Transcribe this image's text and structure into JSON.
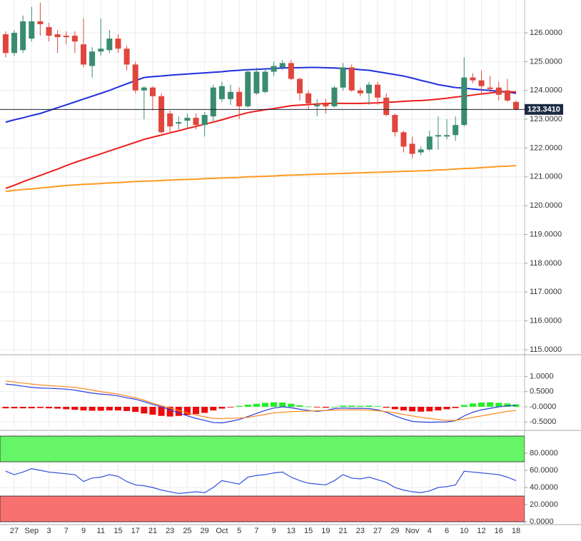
{
  "chart_data": [
    {
      "type": "candlestick",
      "up_color": "#3a8c70",
      "down_color": "#e0463c",
      "open": [
        125.95,
        125.3,
        125.4,
        125.8,
        126.4,
        126.2,
        125.95,
        125.9,
        125.9,
        125.6,
        124.85,
        125.35,
        125.4,
        125.8,
        125.45,
        124.9,
        124.0,
        124.1,
        123.8,
        123.2,
        122.85,
        122.95,
        123.05,
        122.8,
        123.1,
        123.7,
        123.7,
        123.95,
        123.45,
        123.9,
        123.95,
        124.65,
        124.8,
        124.95,
        124.4,
        123.9,
        123.45,
        123.55,
        123.45,
        124.1,
        124.8,
        124.0,
        123.9,
        124.2,
        123.75,
        123.15,
        122.55,
        122.15,
        121.85,
        121.95,
        122.4,
        122.4,
        122.45,
        122.8,
        124.45,
        124.35,
        124.1,
        124.1,
        124.0,
        123.6
      ],
      "high": [
        126.05,
        126.1,
        126.6,
        126.9,
        127.05,
        126.35,
        126.1,
        126.05,
        126.05,
        126.5,
        125.5,
        126.5,
        126.1,
        125.95,
        125.55,
        125.0,
        124.15,
        124.15,
        123.9,
        123.3,
        123.1,
        123.2,
        123.2,
        123.25,
        124.2,
        124.3,
        124.2,
        124.1,
        124.75,
        124.8,
        124.75,
        125.0,
        125.05,
        125.05,
        124.45,
        124.0,
        123.7,
        123.7,
        124.15,
        124.95,
        124.9,
        124.1,
        124.3,
        124.3,
        123.9,
        123.2,
        122.6,
        122.4,
        122.05,
        122.6,
        123.1,
        123.0,
        123.1,
        125.15,
        124.6,
        124.7,
        124.5,
        124.3,
        124.4,
        123.65
      ],
      "low": [
        125.15,
        125.2,
        125.3,
        125.7,
        125.9,
        125.7,
        125.3,
        125.6,
        125.3,
        124.8,
        124.45,
        125.2,
        125.3,
        125.3,
        124.7,
        123.9,
        123.0,
        123.3,
        122.5,
        122.55,
        122.65,
        122.7,
        122.65,
        122.4,
        122.9,
        123.6,
        123.5,
        123.0,
        123.4,
        123.85,
        123.9,
        124.5,
        124.7,
        124.35,
        123.65,
        123.35,
        123.1,
        123.2,
        123.4,
        124.0,
        123.95,
        123.8,
        123.5,
        123.5,
        123.1,
        122.4,
        121.85,
        121.65,
        121.75,
        121.9,
        121.95,
        122.3,
        122.25,
        122.75,
        124.25,
        123.9,
        123.9,
        123.65,
        123.6,
        123.3
      ],
      "close": [
        125.3,
        126.0,
        126.4,
        126.4,
        126.3,
        125.9,
        125.85,
        125.85,
        125.7,
        124.9,
        125.35,
        125.45,
        125.8,
        125.45,
        124.9,
        124.0,
        124.1,
        123.8,
        122.55,
        122.75,
        122.9,
        123.05,
        122.8,
        123.15,
        124.1,
        124.15,
        123.95,
        123.45,
        124.65,
        124.65,
        124.65,
        124.85,
        124.95,
        124.4,
        123.9,
        123.55,
        123.5,
        123.45,
        124.1,
        124.8,
        124.0,
        123.9,
        124.2,
        123.75,
        123.15,
        122.55,
        122.05,
        121.8,
        121.95,
        122.4,
        122.45,
        122.45,
        122.8,
        124.45,
        124.35,
        124.15,
        124.05,
        123.85,
        123.65,
        123.341
      ],
      "series": [
        {
          "color": "#1f2fdd",
          "values": [
            122.9,
            122.98,
            123.05,
            123.13,
            123.2,
            123.3,
            123.4,
            123.5,
            123.6,
            123.7,
            123.8,
            123.9,
            124.0,
            124.12,
            124.23,
            124.34,
            124.45,
            124.48,
            124.5,
            124.53,
            124.55,
            124.57,
            124.59,
            124.61,
            124.63,
            124.65,
            124.68,
            124.7,
            124.72,
            124.73,
            124.75,
            124.76,
            124.78,
            124.79,
            124.79,
            124.8,
            124.8,
            124.79,
            124.78,
            124.76,
            124.75,
            124.72,
            124.7,
            124.65,
            124.6,
            124.55,
            124.5,
            124.43,
            124.35,
            124.28,
            124.2,
            124.15,
            124.1,
            124.08,
            124.05,
            124.02,
            124.0,
            123.97,
            123.95,
            123.9
          ]
        },
        {
          "color": "#ee1c1c",
          "values": [
            120.6,
            120.71,
            120.83,
            120.94,
            121.05,
            121.16,
            121.27,
            121.39,
            121.5,
            121.6,
            121.7,
            121.8,
            121.9,
            122.0,
            122.1,
            122.2,
            122.3,
            122.38,
            122.45,
            122.53,
            122.6,
            122.68,
            122.75,
            122.83,
            122.9,
            122.98,
            123.07,
            123.15,
            123.23,
            123.28,
            123.33,
            123.37,
            123.42,
            123.47,
            123.49,
            123.51,
            123.53,
            123.55,
            123.55,
            123.55,
            123.55,
            123.55,
            123.56,
            123.57,
            123.59,
            123.6,
            123.62,
            123.64,
            123.65,
            123.67,
            123.7,
            123.73,
            123.77,
            123.8,
            123.84,
            123.88,
            123.91,
            123.95,
            123.95,
            123.95
          ]
        },
        {
          "color": "#ff9a1f",
          "values": [
            120.5,
            120.53,
            120.56,
            120.58,
            120.61,
            120.64,
            120.67,
            120.7,
            120.72,
            120.74,
            120.75,
            120.77,
            120.79,
            120.8,
            120.82,
            120.84,
            120.85,
            120.86,
            120.87,
            120.89,
            120.9,
            120.91,
            120.92,
            120.94,
            120.95,
            120.96,
            120.97,
            120.98,
            121.0,
            121.01,
            121.02,
            121.03,
            121.05,
            121.06,
            121.07,
            121.08,
            121.09,
            121.1,
            121.11,
            121.12,
            121.13,
            121.14,
            121.15,
            121.16,
            121.17,
            121.18,
            121.19,
            121.2,
            121.21,
            121.22,
            121.24,
            121.25,
            121.27,
            121.29,
            121.3,
            121.32,
            121.34,
            121.36,
            121.37,
            121.39
          ]
        }
      ],
      "last_price": {
        "value": 123.341,
        "label": "123.3410"
      },
      "ylim": [
        114.875,
        127.14
      ],
      "yticks": [
        {
          "value": 126,
          "label": "126.0000"
        },
        {
          "value": 125,
          "label": "125.0000"
        },
        {
          "value": 124,
          "label": "124.0000"
        },
        {
          "value": 123,
          "label": "123.0000"
        },
        {
          "value": 122,
          "label": "122.0000"
        },
        {
          "value": 121,
          "label": "121.0000"
        },
        {
          "value": 120,
          "label": "120.0000"
        },
        {
          "value": 119,
          "label": "119.0000"
        },
        {
          "value": 118,
          "label": "118.0000"
        },
        {
          "value": 117,
          "label": "117.0000"
        },
        {
          "value": 116,
          "label": "116.0000"
        },
        {
          "value": 115,
          "label": "115.0000"
        }
      ],
      "grid": true
    },
    {
      "type": "bar",
      "up_color": "#22ee22",
      "down_color": "#ee0a0a",
      "values": [
        -0.05,
        -0.05,
        -0.05,
        -0.05,
        -0.04,
        -0.05,
        -0.06,
        -0.08,
        -0.1,
        -0.12,
        -0.13,
        -0.13,
        -0.12,
        -0.12,
        -0.14,
        -0.17,
        -0.22,
        -0.26,
        -0.3,
        -0.32,
        -0.3,
        -0.27,
        -0.24,
        -0.2,
        -0.12,
        -0.06,
        -0.02,
        0.03,
        0.07,
        0.1,
        0.13,
        0.15,
        0.14,
        0.1,
        0.05,
        0.01,
        -0.02,
        -0.03,
        0.0,
        0.04,
        0.04,
        0.03,
        0.04,
        0.02,
        -0.03,
        -0.08,
        -0.12,
        -0.15,
        -0.16,
        -0.15,
        -0.12,
        -0.08,
        -0.04,
        0.06,
        0.11,
        0.14,
        0.15,
        0.13,
        0.11,
        0.08
      ],
      "series": [
        {
          "color": "#2a3fe0",
          "values": [
            0.75,
            0.72,
            0.68,
            0.64,
            0.62,
            0.61,
            0.6,
            0.58,
            0.55,
            0.5,
            0.45,
            0.42,
            0.4,
            0.36,
            0.3,
            0.25,
            0.17,
            0.08,
            0.0,
            -0.1,
            -0.2,
            -0.3,
            -0.38,
            -0.45,
            -0.52,
            -0.53,
            -0.48,
            -0.42,
            -0.32,
            -0.22,
            -0.12,
            -0.04,
            0.0,
            -0.03,
            -0.08,
            -0.12,
            -0.15,
            -0.12,
            -0.06,
            -0.04,
            -0.05,
            -0.05,
            -0.06,
            -0.1,
            -0.18,
            -0.3,
            -0.4,
            -0.48,
            -0.5,
            -0.51,
            -0.5,
            -0.5,
            -0.46,
            -0.3,
            -0.18,
            -0.1,
            -0.05,
            0.0,
            0.03,
            0.05
          ]
        },
        {
          "color": "#ff8a1f",
          "values": [
            0.85,
            0.82,
            0.78,
            0.75,
            0.72,
            0.7,
            0.68,
            0.66,
            0.64,
            0.6,
            0.55,
            0.5,
            0.46,
            0.42,
            0.36,
            0.3,
            0.22,
            0.12,
            0.04,
            -0.04,
            -0.12,
            -0.2,
            -0.27,
            -0.33,
            -0.38,
            -0.39,
            -0.38,
            -0.37,
            -0.35,
            -0.3,
            -0.25,
            -0.2,
            -0.18,
            -0.16,
            -0.15,
            -0.14,
            -0.13,
            -0.12,
            -0.11,
            -0.1,
            -0.1,
            -0.1,
            -0.11,
            -0.13,
            -0.16,
            -0.2,
            -0.25,
            -0.3,
            -0.35,
            -0.38,
            -0.42,
            -0.45,
            -0.45,
            -0.4,
            -0.35,
            -0.3,
            -0.25,
            -0.2,
            -0.15,
            -0.12
          ]
        }
      ],
      "ylim": [
        -0.73,
        1.67
      ],
      "yticks": [
        {
          "value": 1,
          "label": "1.0000"
        },
        {
          "value": 0.5,
          "label": "0.5000"
        },
        {
          "value": 0,
          "label": "-0.0000"
        },
        {
          "value": -0.5,
          "label": "-0.5000"
        }
      ],
      "grid": true
    },
    {
      "type": "line",
      "categories": [
        null,
        "27",
        null,
        "Sep",
        null,
        "3",
        null,
        "7",
        null,
        "9",
        null,
        "11",
        null,
        "15",
        null,
        "17",
        null,
        "21",
        null,
        "23",
        null,
        "25",
        null,
        "29",
        null,
        "Oct",
        null,
        "5",
        null,
        "7",
        null,
        "9",
        null,
        "13",
        null,
        "15",
        null,
        "19",
        null,
        "21",
        null,
        "23",
        null,
        "27",
        null,
        "29",
        null,
        "Nov",
        null,
        "4",
        null,
        "6",
        null,
        "10",
        null,
        "12",
        null,
        "16",
        null,
        "18"
      ],
      "bands": [
        {
          "from": 70,
          "to": 100,
          "color": "#66f566"
        },
        {
          "from": 0,
          "to": 30,
          "color": "#f87171"
        }
      ],
      "series": [
        {
          "color": "#3550dd",
          "values": [
            59,
            55,
            58,
            62,
            60,
            58,
            57,
            56,
            55,
            47,
            51,
            52,
            55,
            53,
            47,
            43,
            42,
            40,
            37,
            35,
            33,
            34,
            35,
            34,
            40,
            48,
            46,
            44,
            52,
            54,
            55,
            57,
            58,
            52,
            48,
            45,
            44,
            43,
            48,
            55,
            51,
            50,
            52,
            49,
            46,
            40,
            37,
            35,
            34,
            36,
            40,
            41,
            43,
            59,
            58,
            57,
            56,
            55,
            52,
            48
          ]
        }
      ],
      "ylim": [
        -3.3,
        105
      ],
      "yticks": [
        {
          "value": 80,
          "label": "80.0000"
        },
        {
          "value": 60,
          "label": "60.0000"
        },
        {
          "value": 40,
          "label": "40.0000"
        },
        {
          "value": 20,
          "label": "20.0000"
        },
        {
          "value": 0,
          "label": "0.0000"
        }
      ],
      "grid": true
    }
  ]
}
